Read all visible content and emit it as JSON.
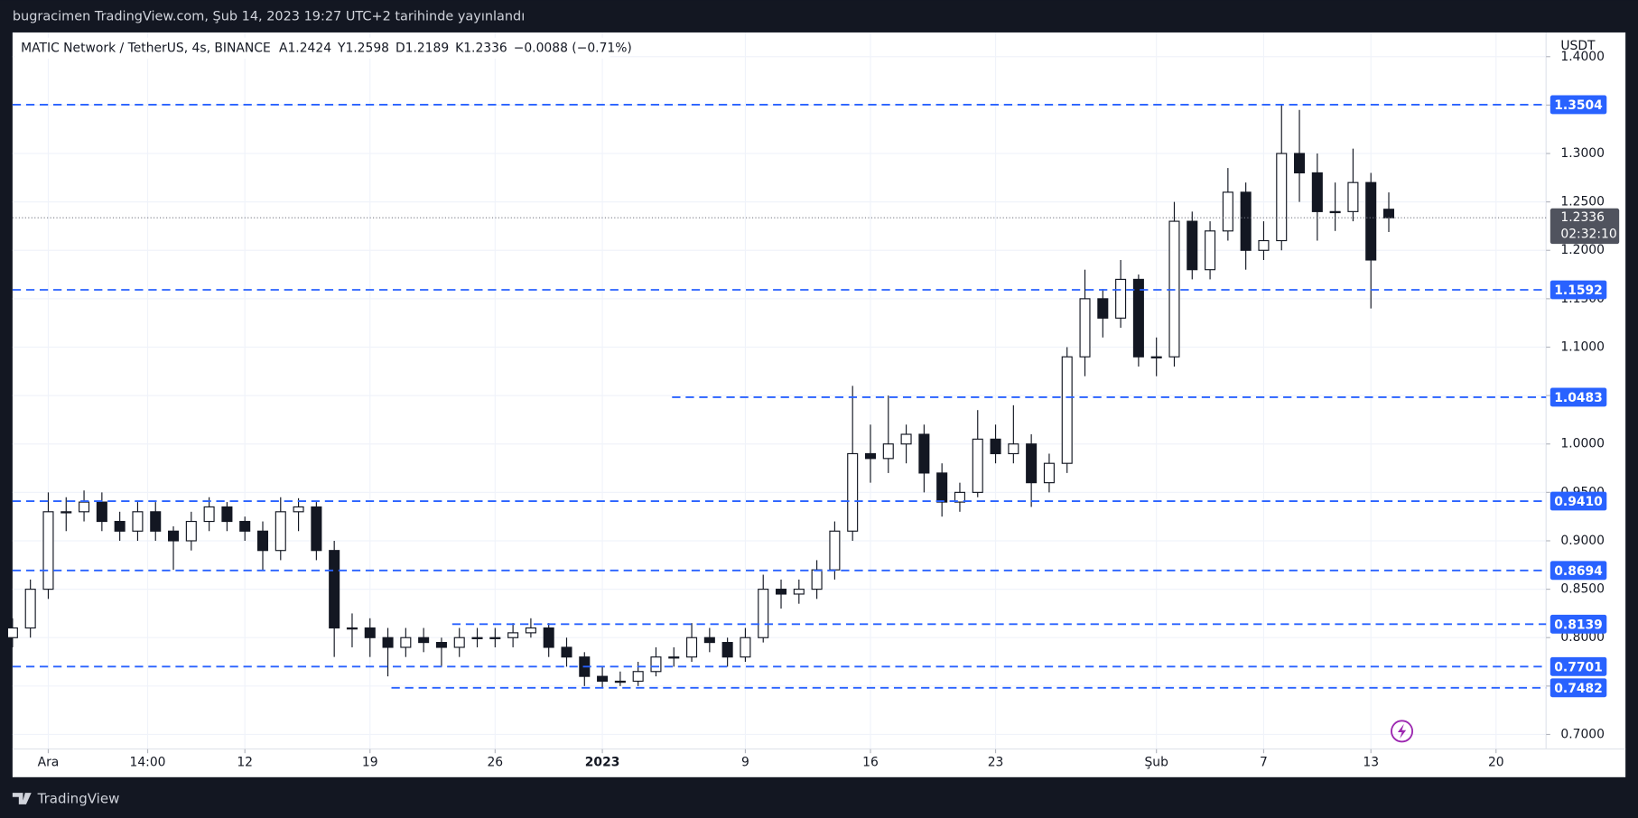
{
  "header": {
    "published": "bugracimen TradingView.com, Şub 14, 2023 19:27 UTC+2 tarihinde yayınlandı"
  },
  "footer": {
    "brand": "TradingView"
  },
  "chart_data": {
    "type": "candlestick",
    "symbol": "MATIC Network / TetherUS, 4s, BINANCE",
    "ohlc": [
      "A1.2424",
      "Y1.2598",
      "D1.2189",
      "K1.2336"
    ],
    "change": "−0.0088 (−0.71%)",
    "y_unit": "USDT",
    "x": [
      -2,
      -1,
      0,
      1,
      2,
      3,
      4,
      5,
      6,
      7,
      8,
      9,
      10,
      11,
      12,
      13,
      14,
      15,
      16,
      17,
      18,
      19,
      20,
      21,
      22,
      23,
      24,
      25,
      26,
      27,
      28,
      29,
      30,
      31,
      32,
      33,
      34,
      35,
      36,
      37,
      38,
      39,
      40,
      41,
      42,
      43,
      44,
      45,
      46,
      47,
      48,
      49,
      50,
      51,
      52,
      53,
      54,
      55,
      56,
      57,
      58,
      59,
      60,
      61,
      62,
      63,
      64,
      65,
      66,
      67,
      68,
      69,
      70,
      71,
      72,
      73,
      74,
      75
    ],
    "open": [
      0.8,
      0.81,
      0.85,
      0.93,
      0.93,
      0.94,
      0.92,
      0.91,
      0.93,
      0.91,
      0.9,
      0.92,
      0.935,
      0.92,
      0.91,
      0.89,
      0.93,
      0.935,
      0.89,
      0.81,
      0.81,
      0.8,
      0.79,
      0.8,
      0.795,
      0.79,
      0.8,
      0.8,
      0.8,
      0.805,
      0.81,
      0.79,
      0.78,
      0.76,
      0.755,
      0.755,
      0.765,
      0.78,
      0.78,
      0.8,
      0.795,
      0.78,
      0.8,
      0.85,
      0.845,
      0.85,
      0.87,
      0.91,
      0.99,
      0.985,
      1.0,
      1.01,
      0.97,
      0.94,
      0.95,
      1.005,
      0.99,
      1.0,
      0.96,
      0.98,
      1.09,
      1.15,
      1.13,
      1.17,
      1.09,
      1.09,
      1.23,
      1.18,
      1.22,
      1.26,
      1.2,
      1.21,
      1.3,
      1.28,
      1.24,
      1.24,
      1.27,
      1.2424
    ],
    "high": [
      0.82,
      0.86,
      0.95,
      0.945,
      0.952,
      0.95,
      0.93,
      0.94,
      0.94,
      0.915,
      0.93,
      0.945,
      0.94,
      0.925,
      0.92,
      0.945,
      0.944,
      0.94,
      0.9,
      0.825,
      0.82,
      0.81,
      0.81,
      0.81,
      0.8,
      0.81,
      0.81,
      0.81,
      0.815,
      0.82,
      0.815,
      0.8,
      0.785,
      0.77,
      0.765,
      0.775,
      0.79,
      0.79,
      0.815,
      0.81,
      0.8,
      0.81,
      0.865,
      0.86,
      0.86,
      0.88,
      0.92,
      1.06,
      1.02,
      1.05,
      1.02,
      1.02,
      0.98,
      0.96,
      1.035,
      1.02,
      1.04,
      1.01,
      0.99,
      1.1,
      1.18,
      1.16,
      1.19,
      1.175,
      1.11,
      1.25,
      1.24,
      1.23,
      1.285,
      1.27,
      1.23,
      1.3504,
      1.345,
      1.3,
      1.27,
      1.305,
      1.28,
      1.2598
    ],
    "low": [
      0.79,
      0.8,
      0.84,
      0.91,
      0.92,
      0.91,
      0.9,
      0.9,
      0.9,
      0.87,
      0.89,
      0.91,
      0.91,
      0.9,
      0.87,
      0.88,
      0.91,
      0.88,
      0.78,
      0.79,
      0.78,
      0.76,
      0.78,
      0.785,
      0.77,
      0.78,
      0.79,
      0.79,
      0.79,
      0.8,
      0.78,
      0.77,
      0.75,
      0.7482,
      0.75,
      0.75,
      0.76,
      0.77,
      0.775,
      0.785,
      0.77,
      0.775,
      0.795,
      0.83,
      0.835,
      0.84,
      0.86,
      0.9,
      0.96,
      0.97,
      0.98,
      0.95,
      0.925,
      0.93,
      0.945,
      0.98,
      0.98,
      0.935,
      0.95,
      0.97,
      1.07,
      1.11,
      1.12,
      1.08,
      1.07,
      1.08,
      1.17,
      1.17,
      1.21,
      1.18,
      1.19,
      1.2,
      1.25,
      1.21,
      1.22,
      1.23,
      1.14,
      1.2189
    ],
    "close": [
      0.81,
      0.85,
      0.93,
      0.93,
      0.94,
      0.92,
      0.91,
      0.93,
      0.91,
      0.9,
      0.92,
      0.935,
      0.92,
      0.91,
      0.89,
      0.93,
      0.935,
      0.89,
      0.81,
      0.81,
      0.8,
      0.79,
      0.8,
      0.795,
      0.79,
      0.8,
      0.8,
      0.8,
      0.805,
      0.81,
      0.79,
      0.78,
      0.76,
      0.755,
      0.755,
      0.765,
      0.78,
      0.78,
      0.8,
      0.795,
      0.78,
      0.8,
      0.85,
      0.845,
      0.85,
      0.87,
      0.91,
      0.99,
      0.985,
      1.0,
      1.01,
      0.97,
      0.94,
      0.95,
      1.005,
      0.99,
      1.0,
      0.96,
      0.98,
      1.09,
      1.15,
      1.13,
      1.17,
      1.09,
      1.09,
      1.23,
      1.18,
      1.22,
      1.26,
      1.2,
      1.21,
      1.3,
      1.28,
      1.24,
      1.24,
      1.27,
      1.19,
      1.2336
    ],
    "up_color": "#ffffff",
    "down_color": "#131722",
    "wick_color": "#131722",
    "xlim": [
      -2,
      83.8
    ],
    "xticks": [
      {
        "value": 0,
        "label": "Ara"
      },
      {
        "value": 5.56,
        "label": "14:00"
      },
      {
        "value": 11,
        "label": "12"
      },
      {
        "value": 18,
        "label": "19"
      },
      {
        "value": 25,
        "label": "26"
      },
      {
        "value": 31,
        "label": "2023",
        "bold": true
      },
      {
        "value": 39,
        "label": "9"
      },
      {
        "value": 46,
        "label": "16"
      },
      {
        "value": 53,
        "label": "23"
      },
      {
        "value": 62,
        "label": "Şub"
      },
      {
        "value": 68,
        "label": "7"
      },
      {
        "value": 74,
        "label": "13"
      },
      {
        "value": 81,
        "label": "20"
      }
    ],
    "ylim": [
      0.685,
      1.425
    ],
    "yticks": [
      {
        "value": 0.7,
        "label": "0.7000"
      },
      {
        "value": 0.75,
        "label": "0.7500"
      },
      {
        "value": 0.8,
        "label": "0.8000"
      },
      {
        "value": 0.85,
        "label": "0.8500"
      },
      {
        "value": 0.9,
        "label": "0.9000"
      },
      {
        "value": 0.95,
        "label": "0.9500"
      },
      {
        "value": 1.0,
        "label": "1.0000"
      },
      {
        "value": 1.05,
        "label": "1.0500"
      },
      {
        "value": 1.1,
        "label": "1.1000"
      },
      {
        "value": 1.15,
        "label": "1.1500"
      },
      {
        "value": 1.2,
        "label": "1.2000"
      },
      {
        "value": 1.25,
        "label": "1.2500"
      },
      {
        "value": 1.3,
        "label": "1.3000"
      },
      {
        "value": 1.35,
        "label": "1.3500"
      },
      {
        "value": 1.4,
        "label": "1.4000"
      }
    ],
    "grid": true,
    "levels": [
      {
        "value": 1.3504,
        "label": "1.3504"
      },
      {
        "value": 1.1592,
        "label": "1.1592"
      },
      {
        "value": 1.0483,
        "label": "1.0483"
      },
      {
        "value": 0.941,
        "label": "0.9410"
      },
      {
        "value": 0.8694,
        "label": "0.8694"
      },
      {
        "value": 0.8139,
        "label": "0.8139"
      },
      {
        "value": 0.7701,
        "label": "0.7701"
      },
      {
        "value": 0.7482,
        "label": "0.7482"
      }
    ],
    "level_start_x": [
      -2,
      -2,
      34.9,
      -2,
      -2,
      22.6,
      -2,
      19.2
    ],
    "level_color": "#2962ff",
    "last_price": 1.2336,
    "countdown": "02:32:10"
  }
}
